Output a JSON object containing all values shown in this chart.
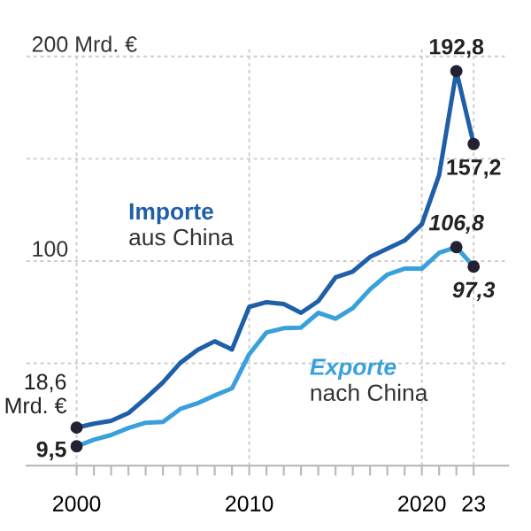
{
  "chart_data": {
    "type": "line",
    "x": [
      2000,
      2001,
      2002,
      2003,
      2004,
      2005,
      2006,
      2007,
      2008,
      2009,
      2010,
      2011,
      2012,
      2013,
      2014,
      2015,
      2016,
      2017,
      2018,
      2019,
      2020,
      2021,
      2022,
      2023
    ],
    "series": [
      {
        "name": "Importe aus China",
        "color": "#1f5fa8",
        "values": [
          18.6,
          20.5,
          21.9,
          25.7,
          32.9,
          40.7,
          50.2,
          56.5,
          60.8,
          56.8,
          77.6,
          79.9,
          79.0,
          74.7,
          80.4,
          92.0,
          94.9,
          102,
          106,
          110,
          118,
          142,
          192.8,
          157.2
        ],
        "value_labels": [
          "18,6 Mrd. €",
          null,
          null,
          null,
          null,
          null,
          null,
          null,
          null,
          null,
          null,
          null,
          null,
          null,
          null,
          null,
          null,
          null,
          null,
          null,
          null,
          null,
          "192,8",
          "157,2"
        ]
      },
      {
        "name": "Exporte nach China",
        "color": "#3aa0dc",
        "values": [
          9.5,
          12.7,
          15.0,
          18.4,
          21.0,
          21.4,
          27.7,
          30.5,
          34.3,
          37.8,
          54.5,
          65.1,
          67.2,
          67.5,
          74.7,
          71.8,
          77.0,
          86.2,
          93.4,
          96.3,
          96.3,
          104,
          106.8,
          97.3
        ],
        "value_labels": [
          "9,5",
          null,
          null,
          null,
          null,
          null,
          null,
          null,
          null,
          null,
          null,
          null,
          null,
          null,
          null,
          null,
          null,
          null,
          null,
          null,
          null,
          null,
          "106,8",
          "97,3"
        ]
      }
    ],
    "xlim": [
      1997.1,
      2025
    ],
    "xticks": [
      2000,
      {
        "value": 2001,
        "label": null
      },
      {
        "value": 2002,
        "label": null
      },
      {
        "value": 2003,
        "label": null
      },
      {
        "value": 2004,
        "label": null
      },
      {
        "value": 2005,
        "label": null
      },
      {
        "value": 2006,
        "label": null
      },
      {
        "value": 2007,
        "label": null
      },
      {
        "value": 2008,
        "label": null
      },
      {
        "value": 2009,
        "label": null
      },
      2010,
      {
        "value": 2011,
        "label": null
      },
      {
        "value": 2012,
        "label": null
      },
      {
        "value": 2013,
        "label": null
      },
      {
        "value": 2014,
        "label": null
      },
      {
        "value": 2015,
        "label": null
      },
      {
        "value": 2016,
        "label": null
      },
      {
        "value": 2017,
        "label": null
      },
      {
        "value": 2018,
        "label": null
      },
      {
        "value": 2019,
        "label": null
      },
      2020,
      {
        "value": 2021,
        "label": null
      },
      {
        "value": 2022,
        "label": null
      },
      {
        "value": 2023,
        "label": "23"
      }
    ],
    "ylim": [
      0,
      205
    ],
    "yticks": [
      {
        "value": 0,
        "label": null
      },
      {
        "value": 50,
        "label": null
      },
      100,
      {
        "value": 150,
        "label": null
      },
      {
        "value": 200,
        "label": "200 Mrd. €"
      }
    ],
    "grid": true,
    "legend": false,
    "line_style": "solid"
  }
}
